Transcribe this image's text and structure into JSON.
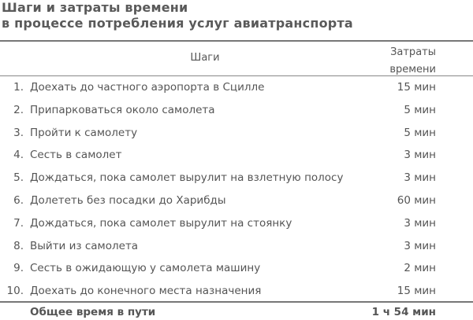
{
  "title": {
    "line1": "Шаги и затраты времени",
    "line2": "в процессе потребления услуг авиатранспорта"
  },
  "table": {
    "headers": {
      "steps": "Шаги",
      "time_line1": "Затраты",
      "time_line2": "времени"
    },
    "rows": [
      {
        "num": "1.",
        "step": "Доехать до частного аэропорта в Сцилле",
        "time": "15 мин"
      },
      {
        "num": "2.",
        "step": "Припарковаться около самолета",
        "time": "5 мин"
      },
      {
        "num": "3.",
        "step": "Пройти к самолету",
        "time": "5 мин"
      },
      {
        "num": "4.",
        "step": "Сесть в самолет",
        "time": "3 мин"
      },
      {
        "num": "5.",
        "step": "Дождаться, пока самолет вырулит на взлетную полосу",
        "time": "3 мин"
      },
      {
        "num": "6.",
        "step": "Долететь без посадки до Харибды",
        "time": "60 мин"
      },
      {
        "num": "7.",
        "step": "Дождаться, пока самолет вырулит на стоянку",
        "time": "3 мин"
      },
      {
        "num": "8.",
        "step": "Выйти из самолета",
        "time": "3 мин"
      },
      {
        "num": "9.",
        "step": "Сесть в ожидающую у самолета машину",
        "time": "2 мин"
      },
      {
        "num": "10.",
        "step": "Доехать до конечного места назначения",
        "time": "15 мин"
      }
    ],
    "total": {
      "label": "Общее время в пути",
      "value": "1 ч 54 мин"
    }
  }
}
